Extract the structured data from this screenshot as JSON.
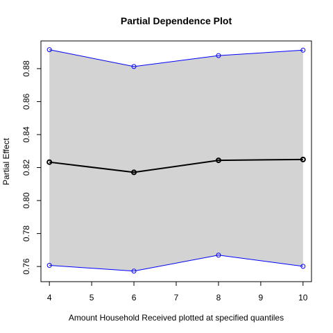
{
  "chart_data": {
    "type": "line",
    "title": "Partial Dependence Plot",
    "xlabel": "Amount Household Received plotted at specified quantiles",
    "ylabel": "Partial Effect",
    "x": [
      4,
      6,
      8,
      10
    ],
    "series": [
      {
        "role": "upper",
        "values": [
          0.8915,
          0.8813,
          0.8879,
          0.8912
        ]
      },
      {
        "role": "estimate",
        "values": [
          0.8233,
          0.8171,
          0.8244,
          0.8249
        ]
      },
      {
        "role": "lower",
        "values": [
          0.7607,
          0.7572,
          0.7669,
          0.7601
        ]
      }
    ],
    "xlim": [
      3.8,
      10.2
    ],
    "ylim": [
      0.7508,
      0.8968
    ],
    "xticks": [
      4,
      5,
      6,
      7,
      8,
      9,
      10
    ],
    "yticks": [
      0.76,
      0.78,
      0.8,
      0.82,
      0.84,
      0.86,
      0.88
    ],
    "ytick_labels": [
      "0.76",
      "0.78",
      "0.80",
      "0.82",
      "0.84",
      "0.86",
      "0.88"
    ],
    "band_color": "#d3d3d3",
    "bound_color": "#0000ff",
    "estimate_color": "#000000",
    "grid": false
  }
}
